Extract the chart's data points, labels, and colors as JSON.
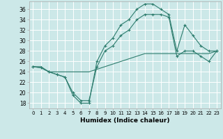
{
  "xlabel": "Humidex (Indice chaleur)",
  "bg_color": "#cce8e8",
  "line_color": "#2e7d6e",
  "grid_color": "#ffffff",
  "xlim": [
    -0.5,
    23.5
  ],
  "ylim": [
    17,
    37.5
  ],
  "yticks": [
    18,
    20,
    22,
    24,
    26,
    28,
    30,
    32,
    34,
    36
  ],
  "xticks": [
    0,
    1,
    2,
    3,
    4,
    5,
    6,
    7,
    8,
    9,
    10,
    11,
    12,
    13,
    14,
    15,
    16,
    17,
    18,
    19,
    20,
    21,
    22,
    23
  ],
  "line1_x": [
    0,
    1,
    2,
    3,
    4,
    5,
    6,
    7,
    8,
    9,
    10,
    11,
    12,
    13,
    14,
    15,
    16,
    17,
    18,
    19,
    20,
    21,
    22,
    23
  ],
  "line1_y": [
    25,
    24.8,
    24,
    23.5,
    23,
    19.5,
    18,
    18,
    26,
    29,
    30.5,
    33,
    34,
    36,
    37,
    37,
    36,
    35,
    28,
    33,
    31,
    29,
    28,
    28
  ],
  "line2_x": [
    0,
    1,
    2,
    3,
    4,
    5,
    6,
    7,
    8,
    9,
    10,
    11,
    12,
    13,
    14,
    15,
    16,
    17,
    18,
    19,
    20,
    21,
    22,
    23
  ],
  "line2_y": [
    25,
    24.8,
    24,
    23.5,
    23,
    20,
    18.5,
    18.5,
    25,
    28,
    29,
    31,
    32,
    34,
    35,
    35,
    35,
    34.5,
    27,
    28,
    28,
    27,
    26,
    28
  ],
  "line3_x": [
    0,
    1,
    2,
    3,
    4,
    5,
    6,
    7,
    8,
    9,
    10,
    11,
    12,
    13,
    14,
    15,
    16,
    17,
    18,
    19,
    20,
    21,
    22,
    23
  ],
  "line3_y": [
    25,
    25,
    24,
    24,
    24,
    24,
    24,
    24,
    24.5,
    25,
    25.5,
    26,
    26.5,
    27,
    27.5,
    27.5,
    27.5,
    27.5,
    27.5,
    27.5,
    27.5,
    27.5,
    27.5,
    28
  ]
}
